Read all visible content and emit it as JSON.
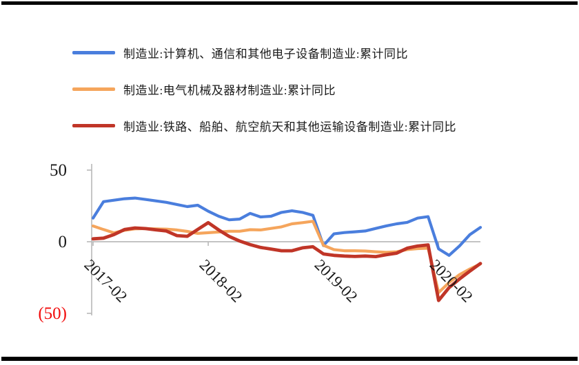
{
  "chart_data": {
    "type": "line",
    "title": "",
    "xlabel": "",
    "ylabel": "",
    "ylim": [
      -50,
      50
    ],
    "grid": "zero-line-only",
    "legend_position": "top-left",
    "x": [
      "2017-02",
      "2017-03",
      "2017-04",
      "2017-05",
      "2017-06",
      "2017-07",
      "2017-08",
      "2017-09",
      "2017-10",
      "2017-11",
      "2017-12",
      "2018-02",
      "2018-03",
      "2018-04",
      "2018-05",
      "2018-06",
      "2018-07",
      "2018-08",
      "2018-09",
      "2018-10",
      "2018-11",
      "2018-12",
      "2019-02",
      "2019-03",
      "2019-04",
      "2019-05",
      "2019-06",
      "2019-07",
      "2019-08",
      "2019-09",
      "2019-10",
      "2019-11",
      "2019-12",
      "2020-02",
      "2020-03",
      "2020-04",
      "2020-05",
      "2020-06"
    ],
    "series": [
      {
        "name": "制造业:计算机、通信和其他电子设备制造业:累计同比",
        "color": "#4a7edd",
        "values": [
          16.5,
          28,
          29,
          30,
          30.5,
          29.5,
          28.5,
          27.5,
          26,
          24.5,
          25.5,
          21.3,
          17.8,
          15.3,
          15.8,
          19.8,
          17.3,
          17.8,
          20.5,
          21.6,
          20.5,
          18.4,
          -2.7,
          5.5,
          6.4,
          6.9,
          7.5,
          9.3,
          11,
          12.5,
          13.5,
          16.5,
          17.5,
          -5,
          -9.5,
          -3,
          5,
          10
        ]
      },
      {
        "name": "制造业:电气机械及器材制造业:累计同比",
        "color": "#f5a55c",
        "values": [
          11,
          8.5,
          6.2,
          8,
          9,
          9.2,
          9,
          8.8,
          8.2,
          7.2,
          5.8,
          6.3,
          6.8,
          7.3,
          7.3,
          8.4,
          8.2,
          9.3,
          10.4,
          12.5,
          13.3,
          14.3,
          -2.5,
          -5.5,
          -6.3,
          -6.3,
          -6.5,
          -7,
          -7.4,
          -7,
          -5.5,
          -4.8,
          -4.5,
          -35.5,
          -28.5,
          -23,
          -19,
          -15.5
        ]
      },
      {
        "name": "制造业:铁路、船舶、航空航天和其他运输设备制造业:累计同比",
        "color": "#c03527",
        "values": [
          2,
          2.5,
          5,
          8.5,
          9.6,
          9.2,
          8.3,
          7.5,
          4.3,
          3.8,
          8.6,
          13.3,
          8.2,
          3.7,
          0.5,
          -2,
          -4,
          -5.1,
          -6.3,
          -6.3,
          -4.3,
          -3.5,
          -8.5,
          -9.5,
          -10,
          -10.3,
          -10,
          -10.4,
          -9.1,
          -8,
          -4.5,
          -3,
          -2.2,
          -41,
          -32,
          -26,
          -20.5,
          -15.2
        ]
      }
    ],
    "yticks": [
      {
        "label": "50",
        "value": 50,
        "color": "#1a1a1a"
      },
      {
        "label": "0",
        "value": 0,
        "color": "#1a1a1a"
      },
      {
        "label": "(50)",
        "value": -50,
        "color": "#f20d0d"
      }
    ],
    "xticks": [
      {
        "label": "2017-02",
        "index": 0
      },
      {
        "label": "2018-02",
        "index": 11
      },
      {
        "label": "2019-02",
        "index": 22
      },
      {
        "label": "2020-02",
        "index": 33
      }
    ]
  }
}
